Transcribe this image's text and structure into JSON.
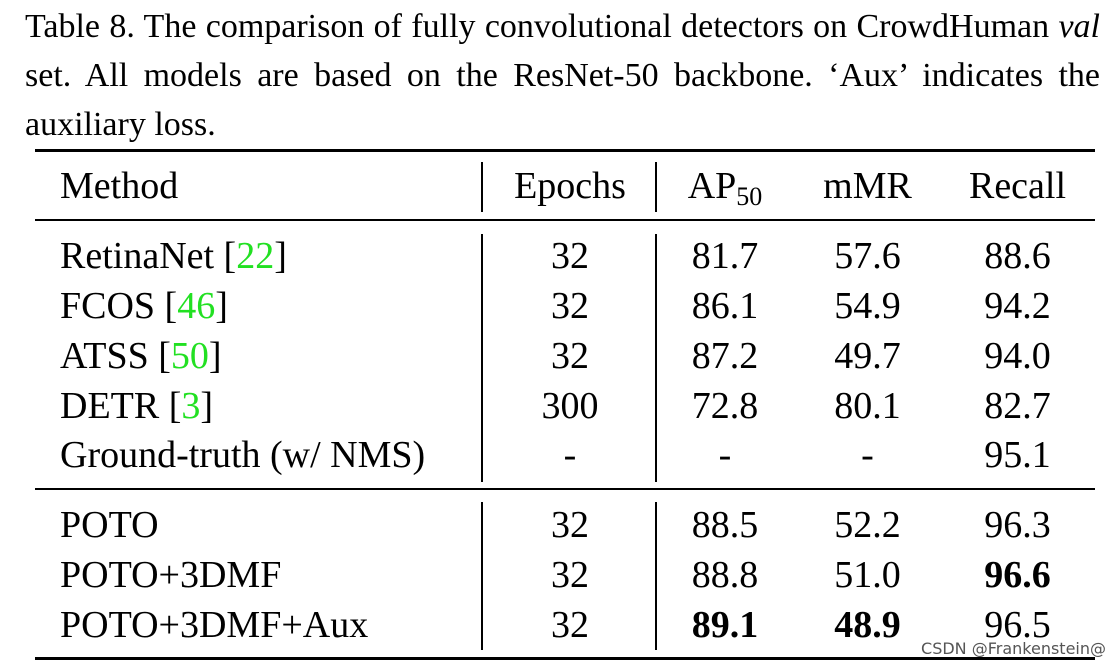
{
  "caption": {
    "prefix": "Table 8. The comparison of fully convolutional detectors on CrowdHuman ",
    "italic": "val",
    "suffix": " set.  All models are based on the ResNet-50 backbone. ‘Aux’ indicates the auxiliary loss."
  },
  "table": {
    "headers": {
      "method": "Method",
      "epochs": "Epochs",
      "ap_base": "AP",
      "ap_sub": "50",
      "mmr": "mMR",
      "recall": "Recall"
    },
    "rows": [
      {
        "method": "RetinaNet [",
        "ref": "22",
        "close": "]",
        "epochs": "32",
        "ap50": "81.7",
        "mmr": "57.6",
        "recall": "88.6"
      },
      {
        "method": "FCOS [",
        "ref": "46",
        "close": "]",
        "epochs": "32",
        "ap50": "86.1",
        "mmr": "54.9",
        "recall": "94.2"
      },
      {
        "method": "ATSS [",
        "ref": "50",
        "close": "]",
        "epochs": "32",
        "ap50": "87.2",
        "mmr": "49.7",
        "recall": "94.0"
      },
      {
        "method": "DETR [",
        "ref": "3",
        "close": "]",
        "epochs": "300",
        "ap50": "72.8",
        "mmr": "80.1",
        "recall": "82.7"
      },
      {
        "method": "Ground-truth (w/ NMS)",
        "ref": "",
        "close": "",
        "epochs": "-",
        "ap50": "-",
        "mmr": "-",
        "recall": "95.1"
      },
      {
        "method": "POTO",
        "ref": "",
        "close": "",
        "epochs": "32",
        "ap50": "88.5",
        "mmr": "52.2",
        "recall": "96.3"
      },
      {
        "method": "POTO+3DMF",
        "ref": "",
        "close": "",
        "epochs": "32",
        "ap50": "88.8",
        "mmr": "51.0",
        "recall": "96.6"
      },
      {
        "method": "POTO+3DMF+Aux",
        "ref": "",
        "close": "",
        "epochs": "32",
        "ap50": "89.1",
        "mmr": "48.9",
        "recall": "96.5"
      }
    ]
  },
  "watermark": "CSDN @Frankenstein@"
}
